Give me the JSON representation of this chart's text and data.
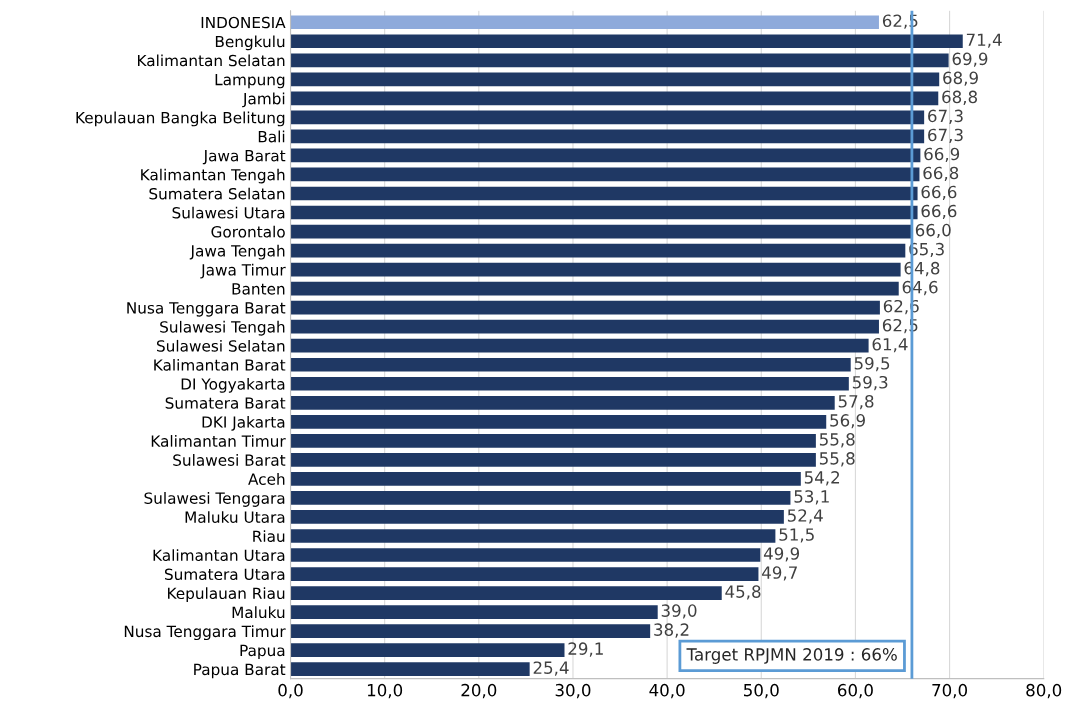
{
  "chart_data": {
    "type": "bar",
    "orientation": "horizontal",
    "categories": [
      "INDONESIA",
      "Bengkulu",
      "Kalimantan Selatan",
      "Lampung",
      "Jambi",
      "Kepulauan Bangka Belitung",
      "Bali",
      "Jawa Barat",
      "Kalimantan Tengah",
      "Sumatera Selatan",
      "Sulawesi Utara",
      "Gorontalo",
      "Jawa Tengah",
      "Jawa Timur",
      "Banten",
      "Nusa Tenggara Barat",
      "Sulawesi Tengah",
      "Sulawesi Selatan",
      "Kalimantan Barat",
      "DI Yogyakarta",
      "Sumatera Barat",
      "DKI Jakarta",
      "Kalimantan Timur",
      "Sulawesi Barat",
      "Aceh",
      "Sulawesi Tenggara",
      "Maluku Utara",
      "Riau",
      "Kalimantan Utara",
      "Sumatera Utara",
      "Kepulauan Riau",
      "Maluku",
      "Nusa Tenggara Timur",
      "Papua",
      "Papua Barat"
    ],
    "values": [
      62.5,
      71.4,
      69.9,
      68.9,
      68.8,
      67.3,
      67.3,
      66.9,
      66.8,
      66.6,
      66.6,
      66.0,
      65.3,
      64.8,
      64.6,
      62.6,
      62.5,
      61.4,
      59.5,
      59.3,
      57.8,
      56.9,
      55.8,
      55.8,
      54.2,
      53.1,
      52.4,
      51.5,
      49.9,
      49.7,
      45.8,
      39.0,
      38.2,
      29.1,
      25.4
    ],
    "value_labels": [
      "62,5",
      "71,4",
      "69,9",
      "68,9",
      "68,8",
      "67,3",
      "67,3",
      "66,9",
      "66,8",
      "66,6",
      "66,6",
      "66,0",
      "65,3",
      "64,8",
      "64,6",
      "62,6",
      "62,5",
      "61,4",
      "59,5",
      "59,3",
      "57,8",
      "56,9",
      "55,8",
      "55,8",
      "54,2",
      "53,1",
      "52,4",
      "51,5",
      "49,9",
      "49,7",
      "45,8",
      "39,0",
      "38,2",
      "29,1",
      "25,4"
    ],
    "colors": [
      "#8eaadb",
      "#1f3864",
      "#1f3864",
      "#1f3864",
      "#1f3864",
      "#1f3864",
      "#1f3864",
      "#1f3864",
      "#1f3864",
      "#1f3864",
      "#1f3864",
      "#1f3864",
      "#1f3864",
      "#1f3864",
      "#1f3864",
      "#1f3864",
      "#1f3864",
      "#1f3864",
      "#1f3864",
      "#1f3864",
      "#1f3864",
      "#1f3864",
      "#1f3864",
      "#1f3864",
      "#1f3864",
      "#1f3864",
      "#1f3864",
      "#1f3864",
      "#1f3864",
      "#1f3864",
      "#1f3864",
      "#1f3864",
      "#1f3864",
      "#1f3864",
      "#1f3864"
    ],
    "xlim": [
      0,
      80
    ],
    "xticks": [
      {
        "value": 0,
        "label": "0,0"
      },
      {
        "value": 10,
        "label": "10,0"
      },
      {
        "value": 20,
        "label": "20,0"
      },
      {
        "value": 30,
        "label": "30,0"
      },
      {
        "value": 40,
        "label": "40,0"
      },
      {
        "value": 50,
        "label": "50,0"
      },
      {
        "value": 60,
        "label": "60,0"
      },
      {
        "value": 70,
        "label": "70,0"
      },
      {
        "value": 80,
        "label": "80,0"
      }
    ],
    "ref_lines": [
      {
        "axis": "x",
        "value": 66,
        "label": "Target RPJMN 2019 : 66%",
        "color": "#5b9bd5"
      }
    ],
    "grid": "x"
  }
}
